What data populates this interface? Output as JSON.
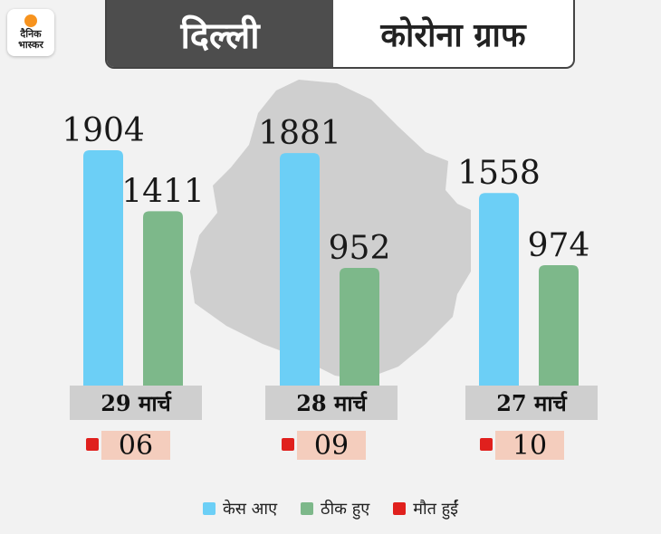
{
  "brand": {
    "logo_line1": "दैनिक",
    "logo_line2": "भास्कर"
  },
  "header": {
    "city": "दिल्ली",
    "title": "कोरोना ग्राफ"
  },
  "colors": {
    "cases": "#6ccff6",
    "recovered": "#7db88a",
    "deaths": "#e0201d",
    "date_bg": "#cfcfcf",
    "death_bg": "#f4cdbd"
  },
  "legend": [
    {
      "label": "केस आए",
      "color": "#6ccff6"
    },
    {
      "label": "ठीक हुए",
      "color": "#7db88a"
    },
    {
      "label": "मौत हुईं",
      "color": "#e0201d"
    }
  ],
  "chart_data": {
    "type": "bar",
    "categories": [
      "29 मार्च",
      "28 मार्च",
      "27 मार्च"
    ],
    "series": [
      {
        "name": "केस आए",
        "values": [
          1904,
          1881,
          1558
        ]
      },
      {
        "name": "ठीक हुए",
        "values": [
          1411,
          952,
          974
        ]
      },
      {
        "name": "मौत हुईं",
        "values": [
          6,
          9,
          10
        ]
      }
    ],
    "value_labels": {
      "cases": [
        "1904",
        "1881",
        "1558"
      ],
      "recovered": [
        "1411",
        "952",
        "974"
      ],
      "deaths": [
        "06",
        "09",
        "10"
      ]
    },
    "grid": false,
    "legend_position": "bottom"
  }
}
